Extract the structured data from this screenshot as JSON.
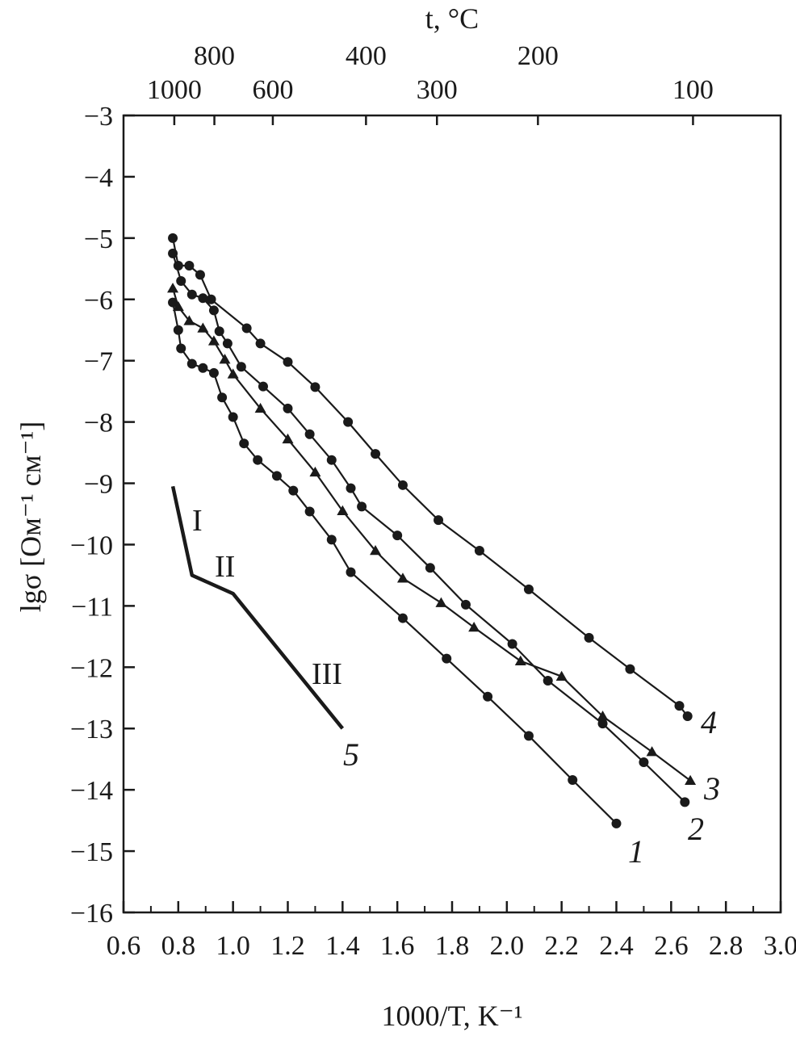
{
  "chart_data": {
    "type": "line",
    "xlabel": "1000/T, K⁻¹",
    "ylabel": "lgσ [Ом⁻¹ см⁻¹]",
    "top_axis_label": "t, °C",
    "xlim": [
      0.6,
      3.0
    ],
    "ylim": [
      -16,
      -3
    ],
    "x_ticks": [
      0.6,
      0.8,
      1.0,
      1.2,
      1.4,
      1.6,
      1.8,
      2.0,
      2.2,
      2.4,
      2.6,
      2.8,
      3.0
    ],
    "x_tick_labels": [
      "0.6",
      "0.8",
      "1.0",
      "1.2",
      "1.4",
      "1.6",
      "1.8",
      "2.0",
      "2.2",
      "2.4",
      "2.6",
      "2.8",
      "3.0"
    ],
    "y_ticks": [
      -3,
      -4,
      -5,
      -6,
      -7,
      -8,
      -9,
      -10,
      -11,
      -12,
      -13,
      -14,
      -15,
      -16
    ],
    "y_tick_labels": [
      "−3",
      "−4",
      "−5",
      "−6",
      "−7",
      "−8",
      "−9",
      "−10",
      "−11",
      "−12",
      "−13",
      "−14",
      "−15",
      "−16"
    ],
    "top_ticks_row1": [
      {
        "t": 800,
        "label": "800"
      },
      {
        "t": 400,
        "label": "400"
      },
      {
        "t": 200,
        "label": "200"
      }
    ],
    "top_ticks_row2": [
      {
        "t": 1000,
        "label": "1000"
      },
      {
        "t": 600,
        "label": "600"
      },
      {
        "t": 300,
        "label": "300"
      },
      {
        "t": 100,
        "label": "100"
      }
    ],
    "series": [
      {
        "name": "1",
        "marker": "circle",
        "x": [
          0.78,
          0.8,
          0.81,
          0.85,
          0.89,
          0.93,
          0.96,
          1.0,
          1.04,
          1.09,
          1.16,
          1.22,
          1.28,
          1.36,
          1.43,
          1.62,
          1.78,
          1.93,
          2.08,
          2.24,
          2.4
        ],
        "y": [
          -6.05,
          -6.5,
          -6.8,
          -7.05,
          -7.12,
          -7.2,
          -7.6,
          -7.92,
          -8.35,
          -8.62,
          -8.88,
          -9.12,
          -9.46,
          -9.92,
          -10.45,
          -11.2,
          -11.86,
          -12.48,
          -13.12,
          -13.84,
          -14.55
        ]
      },
      {
        "name": "2",
        "marker": "circle",
        "x": [
          0.78,
          0.81,
          0.85,
          0.89,
          0.93,
          0.95,
          0.98,
          1.03,
          1.11,
          1.2,
          1.28,
          1.36,
          1.43,
          1.47,
          1.6,
          1.72,
          1.85,
          2.02,
          2.15,
          2.35,
          2.5,
          2.65
        ],
        "y": [
          -5.25,
          -5.7,
          -5.92,
          -5.98,
          -6.18,
          -6.52,
          -6.72,
          -7.1,
          -7.42,
          -7.78,
          -8.2,
          -8.62,
          -9.08,
          -9.38,
          -9.85,
          -10.38,
          -10.98,
          -11.62,
          -12.22,
          -12.92,
          -13.55,
          -14.2
        ]
      },
      {
        "name": "3",
        "marker": "triangle",
        "x": [
          0.78,
          0.8,
          0.84,
          0.89,
          0.93,
          0.97,
          1.0,
          1.1,
          1.2,
          1.3,
          1.4,
          1.52,
          1.62,
          1.76,
          1.88,
          2.05,
          2.2,
          2.35,
          2.53,
          2.67
        ],
        "y": [
          -5.82,
          -6.12,
          -6.35,
          -6.47,
          -6.68,
          -6.98,
          -7.22,
          -7.78,
          -8.28,
          -8.82,
          -9.45,
          -10.1,
          -10.55,
          -10.95,
          -11.35,
          -11.9,
          -12.15,
          -12.8,
          -13.38,
          -13.85
        ]
      },
      {
        "name": "4",
        "marker": "circle",
        "x": [
          0.78,
          0.8,
          0.84,
          0.88,
          0.92,
          1.05,
          1.1,
          1.2,
          1.3,
          1.42,
          1.52,
          1.62,
          1.75,
          1.9,
          2.08,
          2.3,
          2.45,
          2.63,
          2.66
        ],
        "y": [
          -5.0,
          -5.45,
          -5.45,
          -5.6,
          -6.0,
          -6.47,
          -6.72,
          -7.02,
          -7.43,
          -8.0,
          -8.52,
          -9.03,
          -9.6,
          -10.1,
          -10.73,
          -11.52,
          -12.03,
          -12.63,
          -12.8
        ]
      },
      {
        "name": "5",
        "marker": "none",
        "x": [
          0.78,
          0.85,
          1.0,
          1.4
        ],
        "y": [
          -9.05,
          -10.5,
          -10.8,
          -13.0
        ]
      }
    ],
    "region_labels": [
      "I",
      "II",
      "III"
    ]
  }
}
